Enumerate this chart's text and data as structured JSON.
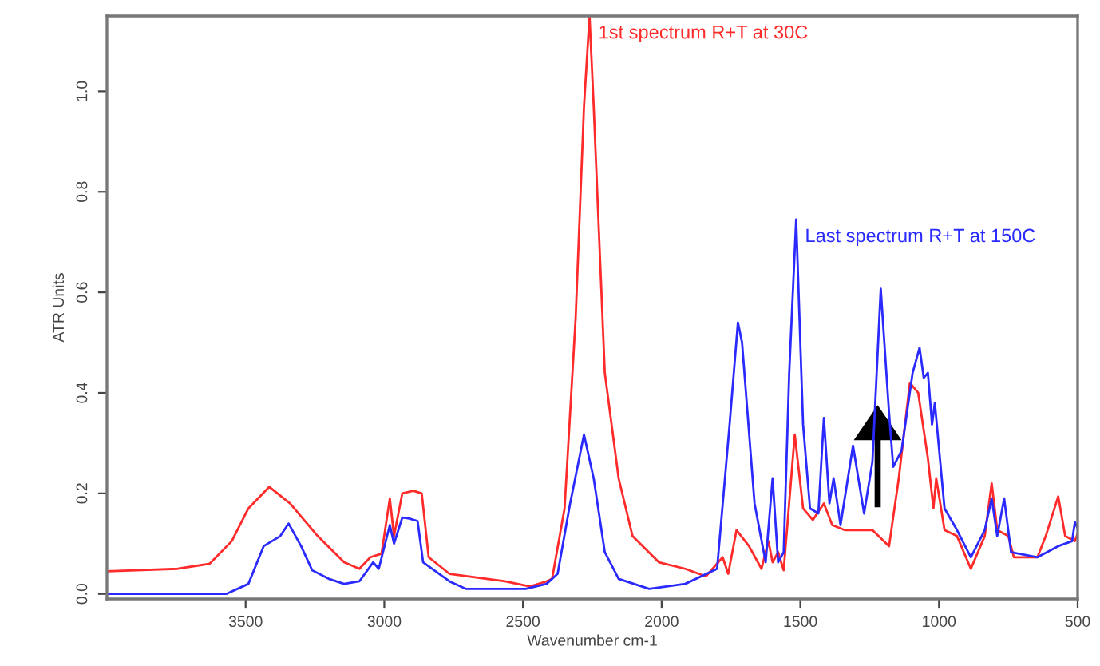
{
  "chart_data": {
    "type": "line",
    "xlabel": "Wavenumber cm-1",
    "ylabel": "ATR Units",
    "xlim": [
      4000,
      500
    ],
    "ylim": [
      -0.01,
      1.15
    ],
    "xticks": [
      3500,
      3000,
      2500,
      2000,
      1500,
      1000,
      500
    ],
    "yticks": [
      {
        "value": 0,
        "label": "0.0"
      },
      {
        "value": 0.2,
        "label": "0.2"
      },
      {
        "value": 0.4,
        "label": "0.4"
      },
      {
        "value": 0.6,
        "label": "0.6"
      },
      {
        "value": 0.8,
        "label": "0.8"
      },
      {
        "value": 1.0,
        "label": "1.0"
      }
    ],
    "grid": false,
    "legend": false,
    "series": [
      {
        "name": "1st spectrum R+T at 30C",
        "color": "#ff2a2a",
        "x": [
          4000,
          3745,
          3630,
          3550,
          3490,
          3415,
          3340,
          3240,
          3145,
          3090,
          3050,
          3010,
          2980,
          2965,
          2935,
          2895,
          2865,
          2840,
          2765,
          2565,
          2475,
          2415,
          2395,
          2350,
          2310,
          2280,
          2260,
          2245,
          2205,
          2155,
          2105,
          2010,
          1915,
          1840,
          1780,
          1760,
          1730,
          1685,
          1640,
          1615,
          1600,
          1580,
          1560,
          1520,
          1490,
          1455,
          1415,
          1385,
          1340,
          1240,
          1180,
          1145,
          1105,
          1075,
          1040,
          1020,
          1010,
          980,
          935,
          885,
          835,
          810,
          790,
          750,
          730,
          645,
          615,
          570,
          545,
          510,
          500
        ],
        "values": [
          0.045,
          0.05,
          0.06,
          0.105,
          0.17,
          0.213,
          0.18,
          0.115,
          0.063,
          0.05,
          0.073,
          0.08,
          0.19,
          0.115,
          0.2,
          0.205,
          0.2,
          0.073,
          0.04,
          0.025,
          0.015,
          0.025,
          0.03,
          0.17,
          0.55,
          0.97,
          1.15,
          0.97,
          0.44,
          0.23,
          0.115,
          0.063,
          0.05,
          0.035,
          0.073,
          0.04,
          0.127,
          0.095,
          0.05,
          0.105,
          0.063,
          0.083,
          0.047,
          0.317,
          0.17,
          0.147,
          0.18,
          0.137,
          0.127,
          0.127,
          0.095,
          0.23,
          0.42,
          0.4,
          0.27,
          0.17,
          0.23,
          0.127,
          0.115,
          0.05,
          0.115,
          0.22,
          0.127,
          0.115,
          0.073,
          0.073,
          0.115,
          0.194,
          0.115,
          0.105,
          0.12
        ]
      },
      {
        "name": "Last spectrum R+T at 150C",
        "color": "#2a2aff",
        "x": [
          4000,
          3570,
          3490,
          3435,
          3375,
          3345,
          3300,
          3260,
          3200,
          3145,
          3090,
          3040,
          3020,
          2980,
          2965,
          2935,
          2910,
          2880,
          2860,
          2765,
          2705,
          2490,
          2415,
          2375,
          2330,
          2280,
          2245,
          2205,
          2155,
          2045,
          1915,
          1800,
          1755,
          1725,
          1710,
          1665,
          1625,
          1600,
          1580,
          1560,
          1540,
          1515,
          1490,
          1465,
          1435,
          1415,
          1395,
          1380,
          1355,
          1310,
          1270,
          1240,
          1210,
          1180,
          1165,
          1135,
          1095,
          1070,
          1055,
          1040,
          1025,
          1015,
          980,
          935,
          885,
          835,
          810,
          790,
          765,
          740,
          645,
          570,
          520,
          510,
          500
        ],
        "values": [
          0.0,
          0.0,
          0.02,
          0.095,
          0.115,
          0.14,
          0.095,
          0.047,
          0.03,
          0.02,
          0.025,
          0.063,
          0.05,
          0.137,
          0.1,
          0.152,
          0.15,
          0.145,
          0.063,
          0.025,
          0.01,
          0.01,
          0.02,
          0.04,
          0.18,
          0.317,
          0.23,
          0.083,
          0.03,
          0.01,
          0.02,
          0.05,
          0.337,
          0.54,
          0.5,
          0.18,
          0.063,
          0.23,
          0.063,
          0.083,
          0.44,
          0.745,
          0.337,
          0.17,
          0.16,
          0.35,
          0.18,
          0.23,
          0.137,
          0.295,
          0.16,
          0.263,
          0.607,
          0.36,
          0.253,
          0.285,
          0.44,
          0.49,
          0.43,
          0.44,
          0.337,
          0.38,
          0.17,
          0.127,
          0.073,
          0.127,
          0.19,
          0.115,
          0.19,
          0.083,
          0.073,
          0.095,
          0.105,
          0.143,
          0.13
        ]
      }
    ]
  }
}
